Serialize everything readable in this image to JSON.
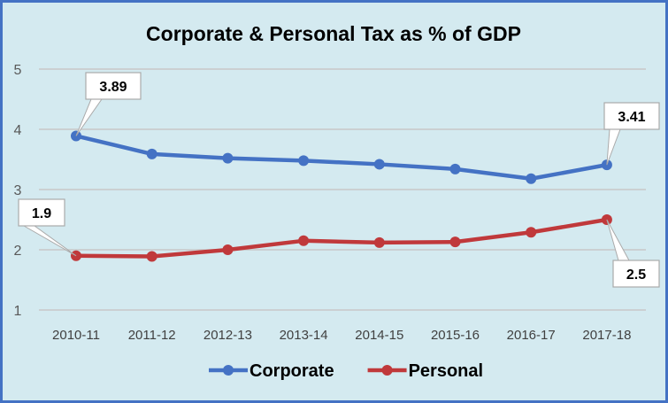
{
  "chart_data": {
    "type": "line",
    "title": "Corporate & Personal Tax as % of GDP",
    "categories": [
      "2010-11",
      "2011-12",
      "2012-13",
      "2013-14",
      "2014-15",
      "2015-16",
      "2016-17",
      "2017-18"
    ],
    "ylim": [
      1,
      5
    ],
    "yticks": [
      "1",
      "2",
      "3",
      "4",
      "5"
    ],
    "grid": true,
    "legend": "bottom",
    "series": [
      {
        "name": "Corporate",
        "color": "#4472c4",
        "values": [
          3.89,
          3.59,
          3.52,
          3.48,
          3.42,
          3.34,
          3.18,
          3.41
        ]
      },
      {
        "name": "Personal",
        "color": "#c0393b",
        "values": [
          1.9,
          1.89,
          2.0,
          2.15,
          2.12,
          2.13,
          2.29,
          2.5
        ]
      }
    ],
    "data_labels": [
      {
        "series": 0,
        "index": 0,
        "text": "3.89"
      },
      {
        "series": 0,
        "index": 7,
        "text": "3.41"
      },
      {
        "series": 1,
        "index": 0,
        "text": "1.9"
      },
      {
        "series": 1,
        "index": 7,
        "text": "2.5"
      }
    ]
  },
  "colors": {
    "background": "#d4eaf0",
    "border": "#4472c4",
    "grid": "#c8c8c8"
  }
}
